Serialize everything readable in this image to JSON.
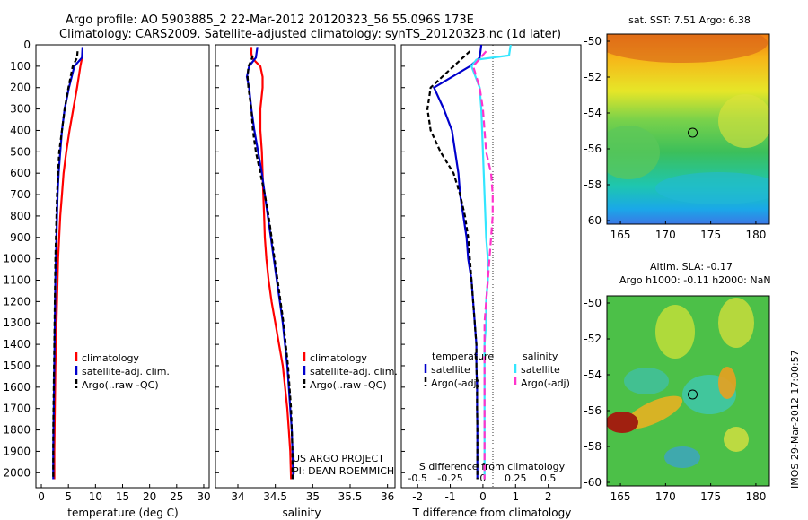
{
  "header": {
    "line1": "Argo profile: AO 5903885_2 22-Mar-2012 20120323_56 55.096S 173E",
    "line2": "Climatology: CARS2009. Satellite-adjusted climatology: synTS_20120323.nc (1d later)"
  },
  "side_label": "IMOS 29-Mar-2012 17:00:57",
  "colors": {
    "climatology": "#ff0000",
    "satellite": "#0000cc",
    "argo": "#000000",
    "satellite_salinity": "#33e6ff",
    "argo_adj_salinity": "#ff33cc"
  },
  "chart_data": [
    {
      "type": "line",
      "id": "temperature",
      "xlabel": "temperature (deg C)",
      "ylabel": "",
      "xlim": [
        -1,
        31
      ],
      "ylim": [
        2070,
        0
      ],
      "xticks": [
        0,
        5,
        10,
        15,
        20,
        25,
        30
      ],
      "yticks": [
        0,
        100,
        200,
        300,
        400,
        500,
        600,
        700,
        800,
        900,
        1000,
        1100,
        1200,
        1300,
        1400,
        1500,
        1600,
        1700,
        1800,
        1900,
        2000
      ],
      "legend": [
        "climatology",
        "satellite-adj. clim.",
        "Argo(..raw -QC)"
      ],
      "series": [
        {
          "name": "climatology",
          "color": "#ff0000",
          "dash": "",
          "points": [
            [
              7.6,
              50
            ],
            [
              7.2,
              100
            ],
            [
              6.6,
              200
            ],
            [
              5.9,
              300
            ],
            [
              5.2,
              400
            ],
            [
              4.6,
              500
            ],
            [
              4.1,
              600
            ],
            [
              3.8,
              700
            ],
            [
              3.5,
              800
            ],
            [
              3.3,
              900
            ],
            [
              3.1,
              1000
            ],
            [
              3.0,
              1100
            ],
            [
              2.9,
              1200
            ],
            [
              2.8,
              1300
            ],
            [
              2.7,
              1400
            ],
            [
              2.6,
              1500
            ],
            [
              2.55,
              1600
            ],
            [
              2.5,
              1700
            ],
            [
              2.45,
              1800
            ],
            [
              2.4,
              1900
            ],
            [
              2.4,
              2030
            ]
          ]
        },
        {
          "name": "satellite-adj. clim.",
          "color": "#0000cc",
          "dash": "",
          "points": [
            [
              7.6,
              10
            ],
            [
              7.5,
              60
            ],
            [
              6.1,
              100
            ],
            [
              5.1,
              200
            ],
            [
              4.3,
              300
            ],
            [
              3.8,
              400
            ],
            [
              3.5,
              500
            ],
            [
              3.2,
              600
            ],
            [
              3.0,
              700
            ],
            [
              2.9,
              800
            ],
            [
              2.8,
              900
            ],
            [
              2.7,
              1000
            ],
            [
              2.6,
              1100
            ],
            [
              2.55,
              1200
            ],
            [
              2.5,
              1300
            ],
            [
              2.45,
              1400
            ],
            [
              2.4,
              1500
            ],
            [
              2.35,
              1600
            ],
            [
              2.3,
              1700
            ],
            [
              2.25,
              1800
            ],
            [
              2.2,
              1900
            ],
            [
              2.2,
              2030
            ]
          ]
        },
        {
          "name": "Argo(..raw -QC)",
          "color": "#000000",
          "dash": "5,3",
          "points": [
            [
              6.7,
              30
            ],
            [
              6.6,
              60
            ],
            [
              6.2,
              80
            ],
            [
              5.8,
              100
            ],
            [
              5.0,
              200
            ],
            [
              4.3,
              300
            ],
            [
              3.8,
              400
            ],
            [
              3.3,
              500
            ],
            [
              3.1,
              600
            ],
            [
              2.9,
              700
            ],
            [
              2.8,
              800
            ],
            [
              2.7,
              900
            ],
            [
              2.6,
              1000
            ],
            [
              2.55,
              1100
            ],
            [
              2.5,
              1200
            ],
            [
              2.45,
              1300
            ],
            [
              2.4,
              1400
            ],
            [
              2.35,
              1500
            ],
            [
              2.3,
              1600
            ],
            [
              2.25,
              1700
            ],
            [
              2.2,
              1800
            ],
            [
              2.2,
              1900
            ],
            [
              2.2,
              2030
            ]
          ]
        }
      ]
    },
    {
      "type": "line",
      "id": "salinity",
      "xlabel": "salinity",
      "ylabel": "",
      "xlim": [
        33.7,
        36.1
      ],
      "ylim": [
        2070,
        0
      ],
      "xticks": [
        34,
        34.5,
        35,
        35.5,
        36
      ],
      "legend": [
        "climatology",
        "satellite-adj. clim.",
        "Argo(..raw -QC)"
      ],
      "annotation": [
        "US ARGO PROJECT",
        "PI: DEAN ROEMMICH"
      ],
      "series": [
        {
          "name": "climatology",
          "color": "#ff0000",
          "dash": "",
          "points": [
            [
              34.18,
              10
            ],
            [
              34.18,
              40
            ],
            [
              34.19,
              60
            ],
            [
              34.24,
              80
            ],
            [
              34.3,
              100
            ],
            [
              34.33,
              150
            ],
            [
              34.33,
              200
            ],
            [
              34.3,
              300
            ],
            [
              34.3,
              400
            ],
            [
              34.32,
              500
            ],
            [
              34.33,
              600
            ],
            [
              34.34,
              700
            ],
            [
              34.35,
              800
            ],
            [
              34.36,
              900
            ],
            [
              34.38,
              1000
            ],
            [
              34.41,
              1100
            ],
            [
              34.45,
              1200
            ],
            [
              34.5,
              1300
            ],
            [
              34.55,
              1400
            ],
            [
              34.6,
              1500
            ],
            [
              34.63,
              1600
            ],
            [
              34.66,
              1700
            ],
            [
              34.68,
              1800
            ],
            [
              34.7,
              1900
            ],
            [
              34.71,
              2030
            ]
          ]
        },
        {
          "name": "satellite-adj. clim.",
          "color": "#0000cc",
          "dash": "",
          "points": [
            [
              34.26,
              10
            ],
            [
              34.24,
              60
            ],
            [
              34.15,
              100
            ],
            [
              34.12,
              150
            ],
            [
              34.15,
              200
            ],
            [
              34.18,
              300
            ],
            [
              34.22,
              400
            ],
            [
              34.27,
              500
            ],
            [
              34.32,
              600
            ],
            [
              34.36,
              700
            ],
            [
              34.4,
              800
            ],
            [
              34.44,
              900
            ],
            [
              34.48,
              1000
            ],
            [
              34.52,
              1100
            ],
            [
              34.56,
              1200
            ],
            [
              34.6,
              1300
            ],
            [
              34.63,
              1400
            ],
            [
              34.66,
              1500
            ],
            [
              34.68,
              1600
            ],
            [
              34.7,
              1700
            ],
            [
              34.72,
              1800
            ],
            [
              34.73,
              1900
            ],
            [
              34.74,
              2030
            ]
          ]
        },
        {
          "name": "Argo(..raw -QC)",
          "color": "#000000",
          "dash": "5,3",
          "points": [
            [
              34.2,
              50
            ],
            [
              34.17,
              80
            ],
            [
              34.14,
              100
            ],
            [
              34.13,
              150
            ],
            [
              34.14,
              200
            ],
            [
              34.18,
              300
            ],
            [
              34.2,
              400
            ],
            [
              34.24,
              500
            ],
            [
              34.3,
              600
            ],
            [
              34.36,
              700
            ],
            [
              34.41,
              800
            ],
            [
              34.45,
              900
            ],
            [
              34.49,
              1000
            ],
            [
              34.53,
              1100
            ],
            [
              34.57,
              1200
            ],
            [
              34.61,
              1300
            ],
            [
              34.64,
              1400
            ],
            [
              34.67,
              1500
            ],
            [
              34.69,
              1600
            ],
            [
              34.71,
              1700
            ],
            [
              34.72,
              1800
            ],
            [
              34.73,
              1900
            ],
            [
              34.73,
              2030
            ]
          ]
        }
      ]
    },
    {
      "type": "line",
      "id": "difference",
      "xlabel": "T difference from climatology",
      "xlabel_top": "S difference from climatology",
      "ylabel": "",
      "xlim": [
        -2.5,
        3.0
      ],
      "ylim": [
        2070,
        0
      ],
      "xticks": [
        -2,
        -1,
        0,
        1,
        2
      ],
      "xtick_labels_S": [
        "-0.5",
        "-0.25",
        "0",
        "0.25",
        "0.5"
      ],
      "legend_T": {
        "title": "temperature",
        "items": [
          "satellite",
          "Argo(-adj)"
        ]
      },
      "legend_S": {
        "title": "salinity",
        "items": [
          "satellite",
          "Argo(-adj)"
        ]
      },
      "series": [
        {
          "name": "satellite",
          "group": "temperature",
          "color": "#0000cc",
          "dash": "",
          "points": [
            [
              -0.05,
              0
            ],
            [
              -0.1,
              60
            ],
            [
              -0.4,
              100
            ],
            [
              -1.5,
              200
            ],
            [
              -1.2,
              300
            ],
            [
              -0.95,
              400
            ],
            [
              -0.85,
              500
            ],
            [
              -0.75,
              600
            ],
            [
              -0.7,
              700
            ],
            [
              -0.6,
              800
            ],
            [
              -0.5,
              900
            ],
            [
              -0.45,
              1000
            ],
            [
              -0.35,
              1100
            ],
            [
              -0.3,
              1200
            ],
            [
              -0.25,
              1300
            ],
            [
              -0.2,
              1400
            ],
            [
              -0.2,
              1500
            ],
            [
              -0.18,
              1600
            ],
            [
              -0.18,
              1700
            ],
            [
              -0.17,
              1800
            ],
            [
              -0.17,
              1900
            ],
            [
              -0.17,
              2030
            ]
          ]
        },
        {
          "name": "Argo(-adj)",
          "group": "temperature",
          "color": "#000000",
          "dash": "5,3",
          "points": [
            [
              -0.4,
              30
            ],
            [
              -0.9,
              100
            ],
            [
              -1.6,
              200
            ],
            [
              -1.7,
              300
            ],
            [
              -1.6,
              400
            ],
            [
              -1.3,
              500
            ],
            [
              -0.9,
              600
            ],
            [
              -0.7,
              700
            ],
            [
              -0.55,
              800
            ],
            [
              -0.45,
              900
            ],
            [
              -0.4,
              1000
            ],
            [
              -0.35,
              1100
            ],
            [
              -0.3,
              1200
            ],
            [
              -0.25,
              1300
            ],
            [
              -0.2,
              1400
            ],
            [
              -0.2,
              1500
            ],
            [
              -0.18,
              1600
            ],
            [
              -0.18,
              1700
            ],
            [
              -0.17,
              1800
            ],
            [
              -0.17,
              1900
            ],
            [
              -0.17,
              2030
            ]
          ]
        },
        {
          "name": "satellite",
          "group": "salinity",
          "color": "#33e6ff",
          "dash": "",
          "points": [
            [
              0.85,
              0
            ],
            [
              0.8,
              50
            ],
            [
              -0.2,
              70
            ],
            [
              -0.35,
              100
            ],
            [
              -0.1,
              200
            ],
            [
              -0.05,
              300
            ],
            [
              0.0,
              500
            ],
            [
              0.05,
              700
            ],
            [
              0.1,
              900
            ],
            [
              0.15,
              1000
            ],
            [
              0.15,
              1100
            ],
            [
              0.1,
              1200
            ],
            [
              0.1,
              1300
            ],
            [
              0.05,
              1400
            ],
            [
              0.05,
              1500
            ],
            [
              0.05,
              1600
            ],
            [
              0.05,
              1700
            ],
            [
              0.05,
              1800
            ],
            [
              0.05,
              1900
            ],
            [
              0.05,
              2030
            ]
          ]
        },
        {
          "name": "Argo(-adj)",
          "group": "salinity",
          "color": "#ff33cc",
          "dash": "8,4",
          "points": [
            [
              0.1,
              30
            ],
            [
              -0.3,
              100
            ],
            [
              -0.1,
              200
            ],
            [
              0.0,
              300
            ],
            [
              0.05,
              400
            ],
            [
              0.1,
              500
            ],
            [
              0.25,
              600
            ],
            [
              0.3,
              700
            ],
            [
              0.3,
              800
            ],
            [
              0.25,
              900
            ],
            [
              0.2,
              1000
            ],
            [
              0.15,
              1100
            ],
            [
              0.1,
              1200
            ],
            [
              0.05,
              1300
            ],
            [
              0.05,
              1400
            ],
            [
              0.05,
              1500
            ],
            [
              0.05,
              1600
            ],
            [
              0.05,
              1700
            ],
            [
              0.05,
              1800
            ],
            [
              0.05,
              1900
            ],
            [
              0.05,
              2030
            ]
          ]
        }
      ]
    },
    {
      "type": "heatmap",
      "id": "sst_map",
      "title": "sat. SST: 7.51  Argo: 6.38",
      "xlim": [
        163.5,
        181.5
      ],
      "ylim": [
        -60.2,
        -49.6
      ],
      "xticks": [
        165,
        170,
        175,
        180
      ],
      "yticks": [
        -50,
        -52,
        -54,
        -56,
        -58,
        -60
      ],
      "marker": {
        "lon": 173,
        "lat": -55.1
      }
    },
    {
      "type": "heatmap",
      "id": "sla_map",
      "title": "Altim. SLA: -0.17",
      "subtitle": "Argo h1000: -0.11 h2000: NaN",
      "xlim": [
        163.5,
        181.5
      ],
      "ylim": [
        -60.2,
        -49.6
      ],
      "xticks": [
        165,
        170,
        175,
        180
      ],
      "yticks": [
        -50,
        -52,
        -54,
        -56,
        -58,
        -60
      ],
      "marker": {
        "lon": 173,
        "lat": -55.1
      }
    }
  ]
}
